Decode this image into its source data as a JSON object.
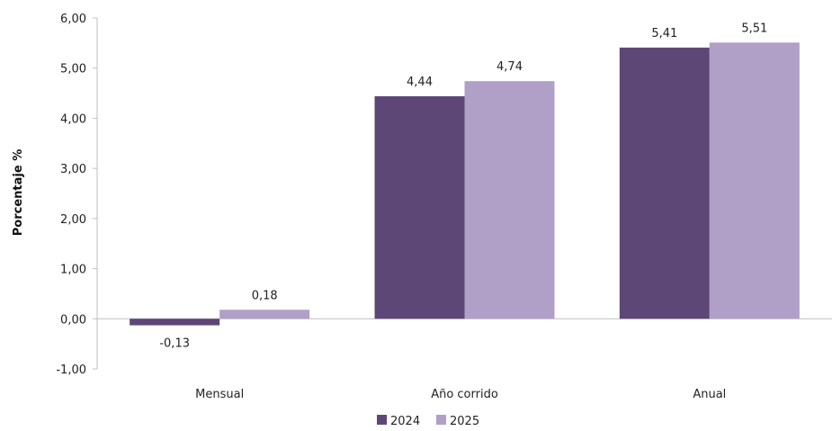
{
  "chart_data": {
    "type": "bar",
    "categories": [
      "Mensual",
      "Año corrido",
      "Anual"
    ],
    "series": [
      {
        "name": "2024",
        "values": [
          -0.13,
          4.44,
          5.41
        ],
        "labels": [
          "-0,13",
          "4,44",
          "5,41"
        ],
        "color": "#5d4777"
      },
      {
        "name": "2025",
        "values": [
          0.18,
          4.74,
          5.51
        ],
        "labels": [
          "0,18",
          "4,74",
          "5,51"
        ],
        "color": "#b09fc6"
      }
    ],
    "title": "",
    "xlabel": "",
    "ylabel": "Porcentaje %",
    "ylim": [
      -1,
      6
    ],
    "yticks": [
      -1,
      0,
      1,
      2,
      3,
      4,
      5,
      6
    ],
    "ytick_labels": [
      "-1,00",
      "0,00",
      "1,00",
      "2,00",
      "3,00",
      "4,00",
      "5,00",
      "6,00"
    ],
    "grid": false,
    "legend_position": "bottom"
  }
}
